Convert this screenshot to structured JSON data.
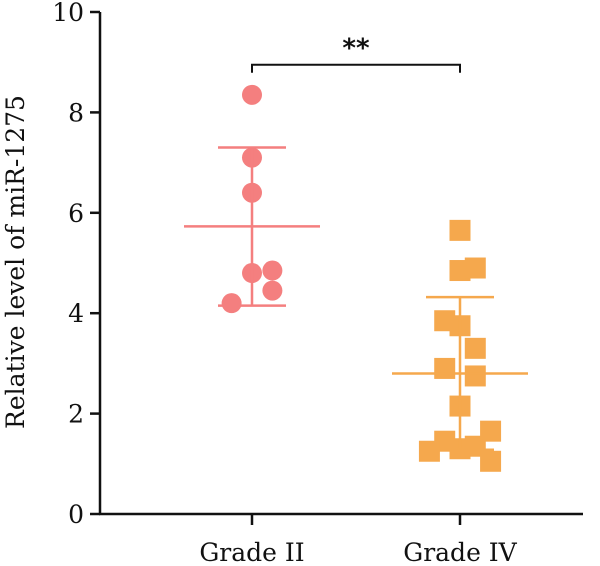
{
  "chart_data": {
    "type": "scatter",
    "title": "",
    "xlabel": "",
    "ylabel": "Relative level of miR-1275",
    "ylim": [
      0,
      10
    ],
    "yticks": [
      0,
      2,
      4,
      6,
      8,
      10
    ],
    "grid": false,
    "legend": "none",
    "categories": [
      "Grade II",
      "Grade IV"
    ],
    "groups": [
      {
        "category": "Grade II",
        "marker": "circle",
        "color": "#F47F7F",
        "values": [
          8.35,
          7.1,
          6.4,
          4.8,
          4.85,
          4.45,
          4.2
        ],
        "mean": 5.73,
        "sd_upper": 7.3,
        "sd_lower": 4.15,
        "jitter": [
          0,
          0,
          0,
          0,
          0.2,
          0.2,
          -0.2
        ]
      },
      {
        "category": "Grade IV",
        "marker": "square",
        "color": "#F5A84D",
        "values": [
          5.65,
          4.85,
          4.9,
          3.85,
          3.75,
          3.3,
          2.9,
          2.75,
          2.15,
          1.45,
          1.3,
          1.35,
          1.25,
          1.65,
          1.05
        ],
        "mean": 2.8,
        "sd_upper": 4.32,
        "sd_lower": 1.28,
        "jitter": [
          0,
          0,
          0.15,
          -0.15,
          0,
          0.15,
          -0.15,
          0.15,
          0,
          -0.15,
          0,
          0.15,
          -0.3,
          0.3,
          0.3
        ]
      }
    ],
    "significance": {
      "label": "**",
      "between": [
        "Grade II",
        "Grade IV"
      ],
      "y": 8.95
    }
  }
}
